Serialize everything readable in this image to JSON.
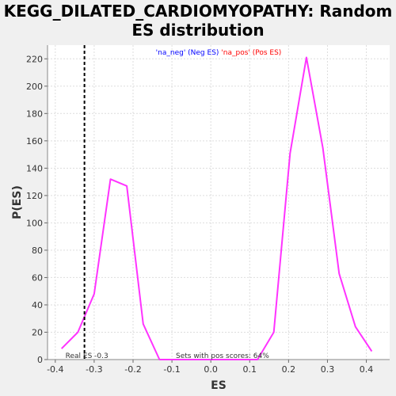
{
  "chart_data": {
    "type": "line",
    "title_line1": "KEGG_DILATED_CARDIOMYOPATHY: Random",
    "title_line2": "ES distribution",
    "xlabel": "ES",
    "ylabel": "P(ES)",
    "xlim": [
      -0.42,
      0.46
    ],
    "ylim": [
      0,
      230
    ],
    "x_ticks": [
      -0.4,
      -0.3,
      -0.2,
      -0.1,
      0.0,
      0.1,
      0.2,
      0.3,
      0.4
    ],
    "x_tick_labels": [
      "-0.4",
      "-0.3",
      "-0.2",
      "-0.1",
      "0.0",
      "0.1",
      "0.2",
      "0.3",
      "0.4"
    ],
    "y_ticks": [
      0,
      20,
      40,
      60,
      80,
      100,
      120,
      140,
      160,
      180,
      200,
      220
    ],
    "y_tick_labels": [
      "0",
      "20",
      "40",
      "60",
      "80",
      "100",
      "120",
      "140",
      "160",
      "180",
      "200",
      "220"
    ],
    "grid": true,
    "legend": {
      "placement": "top-center",
      "entries": [
        {
          "label": "'na_neg' (Neg ES)",
          "color": "#0000ff"
        },
        {
          "label": "'na_pos' (Pos ES)",
          "color": "#ff0000"
        }
      ]
    },
    "series": [
      {
        "color": "#ff33ff",
        "x": [
          -0.384,
          -0.342,
          -0.3,
          -0.258,
          -0.216,
          -0.174,
          -0.132,
          -0.09,
          -0.048,
          -0.006,
          0.036,
          0.078,
          0.12,
          0.162,
          0.204,
          0.246,
          0.288,
          0.33,
          0.372,
          0.414
        ],
        "y": [
          8,
          20,
          48,
          132,
          127,
          26,
          0,
          0,
          0,
          0,
          0,
          0,
          0,
          20,
          151,
          221,
          155,
          63,
          24,
          6
        ]
      }
    ],
    "real_es": {
      "value": -0.325,
      "label": "Real ES -0.3"
    },
    "annotation": "Sets with pos scores: 64%"
  },
  "colors": {
    "background": "#f0f0f0",
    "plot_background": "#ffffff",
    "line": "#ff33ff",
    "grid": "#dddddd"
  }
}
